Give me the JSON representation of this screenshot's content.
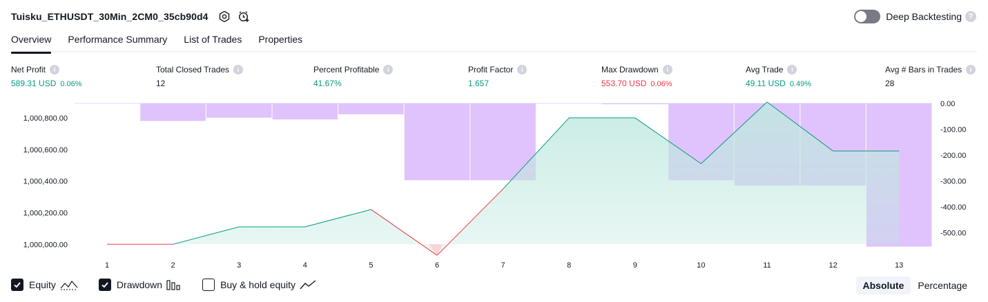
{
  "header": {
    "strategy_title": "Tuisku_ETHUSDT_30Min_2CM0_35cb90d4",
    "deep_backtesting_label": "Deep Backtesting",
    "deep_backtesting_on": false,
    "help_glyph": "?"
  },
  "tabs": [
    {
      "label": "Overview",
      "active": true
    },
    {
      "label": "Performance Summary",
      "active": false
    },
    {
      "label": "List of Trades",
      "active": false
    },
    {
      "label": "Properties",
      "active": false
    }
  ],
  "metrics": {
    "net_profit": {
      "label": "Net Profit",
      "value": "589.31 USD",
      "sub": "0.06%"
    },
    "total_closed_trades": {
      "label": "Total Closed Trades",
      "value": "12"
    },
    "percent_profitable": {
      "label": "Percent Profitable",
      "value": "41.67%"
    },
    "profit_factor": {
      "label": "Profit Factor",
      "value": "1.657"
    },
    "max_drawdown": {
      "label": "Max Drawdown",
      "value": "553.70 USD",
      "sub": "0.06%"
    },
    "avg_trade": {
      "label": "Avg Trade",
      "value": "49.11 USD",
      "sub": "0.49%"
    },
    "avg_bars": {
      "label": "Avg # Bars in Trades",
      "value": "28"
    }
  },
  "chart_data": {
    "type": "line",
    "x": [
      1,
      2,
      3,
      4,
      5,
      6,
      7,
      8,
      9,
      10,
      11,
      12,
      13
    ],
    "series": [
      {
        "name": "Equity",
        "axis": "left",
        "values": [
          1000000,
          1000000,
          1000110,
          1000110,
          1000220,
          999930,
          1000350,
          1000800,
          1000800,
          1000510,
          1000900,
          1000590,
          1000590
        ]
      },
      {
        "name": "Drawdown",
        "axis": "right",
        "kind": "bar",
        "values": [
          0,
          -68,
          -55,
          -62,
          -42,
          -297,
          -297,
          0,
          -3,
          -297,
          -317,
          -317,
          -553.7
        ]
      }
    ],
    "y_left_ticks": [
      "1,000,000.00",
      "1,000,200.00",
      "1,000,400.00",
      "1,000,600.00",
      "1,000,800.00"
    ],
    "y_left_tick_values": [
      1000000,
      1000200,
      1000400,
      1000600,
      1000800
    ],
    "y_left_range": [
      999940,
      1000900
    ],
    "y_right_ticks": [
      "0.00",
      "-100.00",
      "-200.00",
      "-300.00",
      "-400.00",
      "-500.00"
    ],
    "y_right_tick_values": [
      0,
      -100,
      -200,
      -300,
      -400,
      -500
    ],
    "y_right_range": [
      -560,
      0
    ],
    "grid": false,
    "colors": {
      "equity_line_up": "#089981",
      "equity_line_down": "#f23645",
      "equity_fill": "#bfe8df",
      "drawdown_fill": "#dbb8fb",
      "drawdown_edge": "#c79df2"
    }
  },
  "legend": {
    "items": [
      {
        "label": "Equity",
        "checked": true,
        "icon": "equity-wave-icon"
      },
      {
        "label": "Drawdown",
        "checked": true,
        "icon": "drawdown-bars-icon"
      },
      {
        "label": "Buy & hold equity",
        "checked": false,
        "icon": "trend-line-icon"
      }
    ]
  },
  "mode": {
    "absolute_label": "Absolute",
    "percentage_label": "Percentage",
    "active": "absolute"
  }
}
